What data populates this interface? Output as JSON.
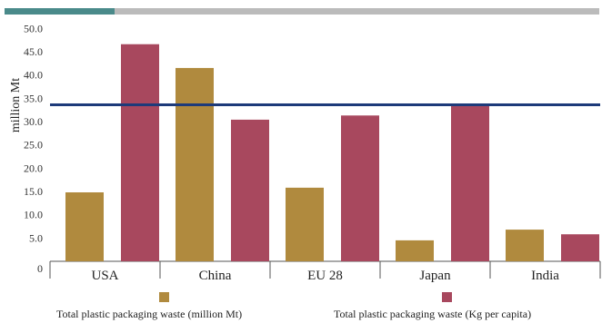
{
  "top_bar": {
    "accent_color": "#4a8a8a",
    "rest_color": "#bbbbbb"
  },
  "chart_data": {
    "type": "bar",
    "ylabel": "million Mt",
    "ylim": [
      0,
      52
    ],
    "yticks": [
      "0",
      "5.0",
      "10.0",
      "15.0",
      "20.0",
      "25.0",
      "30.0",
      "35.0",
      "40.0",
      "45.0",
      "50.0"
    ],
    "ytick_values": [
      0,
      5,
      10,
      15,
      20,
      25,
      30,
      35,
      40,
      45,
      50
    ],
    "categories": [
      "USA",
      "China",
      "EU 28",
      "Japan",
      "India"
    ],
    "series": [
      {
        "name": "Total plastic packaging waste (million Mt)",
        "color": "#b08a3e",
        "values": [
          14.8,
          41.5,
          15.8,
          4.5,
          6.8
        ]
      },
      {
        "name": "Total plastic packaging waste (Kg per capita)",
        "color": "#a8485e",
        "values": [
          46.6,
          30.4,
          31.3,
          33.3,
          5.8
        ]
      }
    ],
    "reference_line": {
      "value": 33.6,
      "color": "#1d3a7a"
    },
    "grid": false,
    "legend_position": "bottom"
  }
}
